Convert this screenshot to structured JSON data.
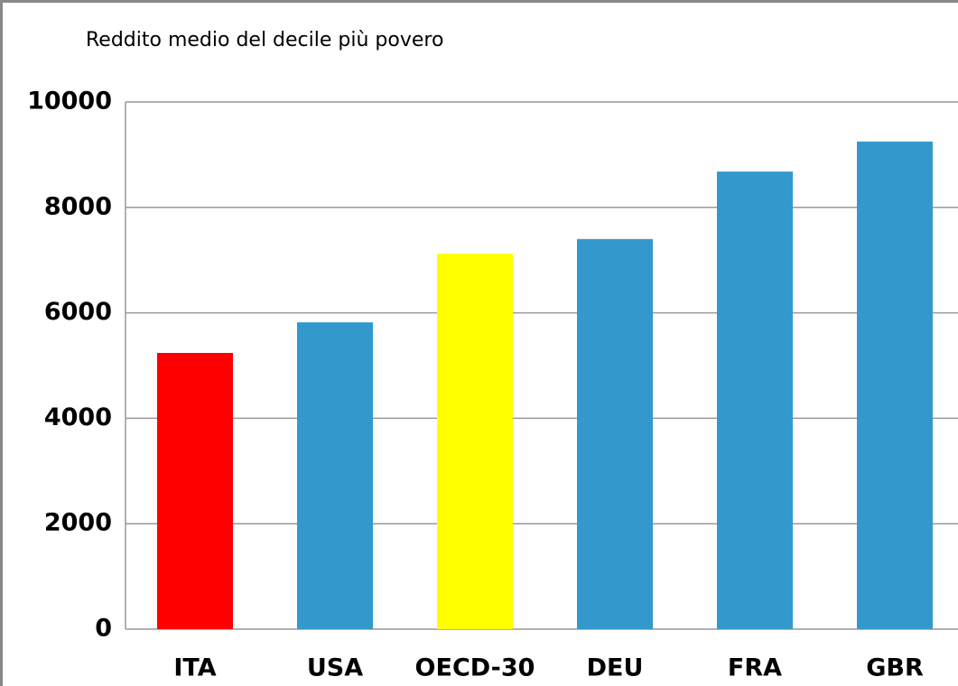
{
  "chart_data": {
    "type": "bar",
    "title": "Reddito medio del decile più povero",
    "categories": [
      "ITA",
      "USA",
      "OECD-30",
      "DEU",
      "FRA",
      "GBR"
    ],
    "values": [
      5240,
      5820,
      7120,
      7400,
      8680,
      9250
    ],
    "colors": [
      "#ff0000",
      "#3399cc",
      "#ffff00",
      "#3399cc",
      "#3399cc",
      "#3399cc"
    ],
    "ylim": [
      0,
      10000
    ],
    "yticks": [
      0,
      2000,
      4000,
      6000,
      8000,
      10000
    ],
    "grid": true
  }
}
